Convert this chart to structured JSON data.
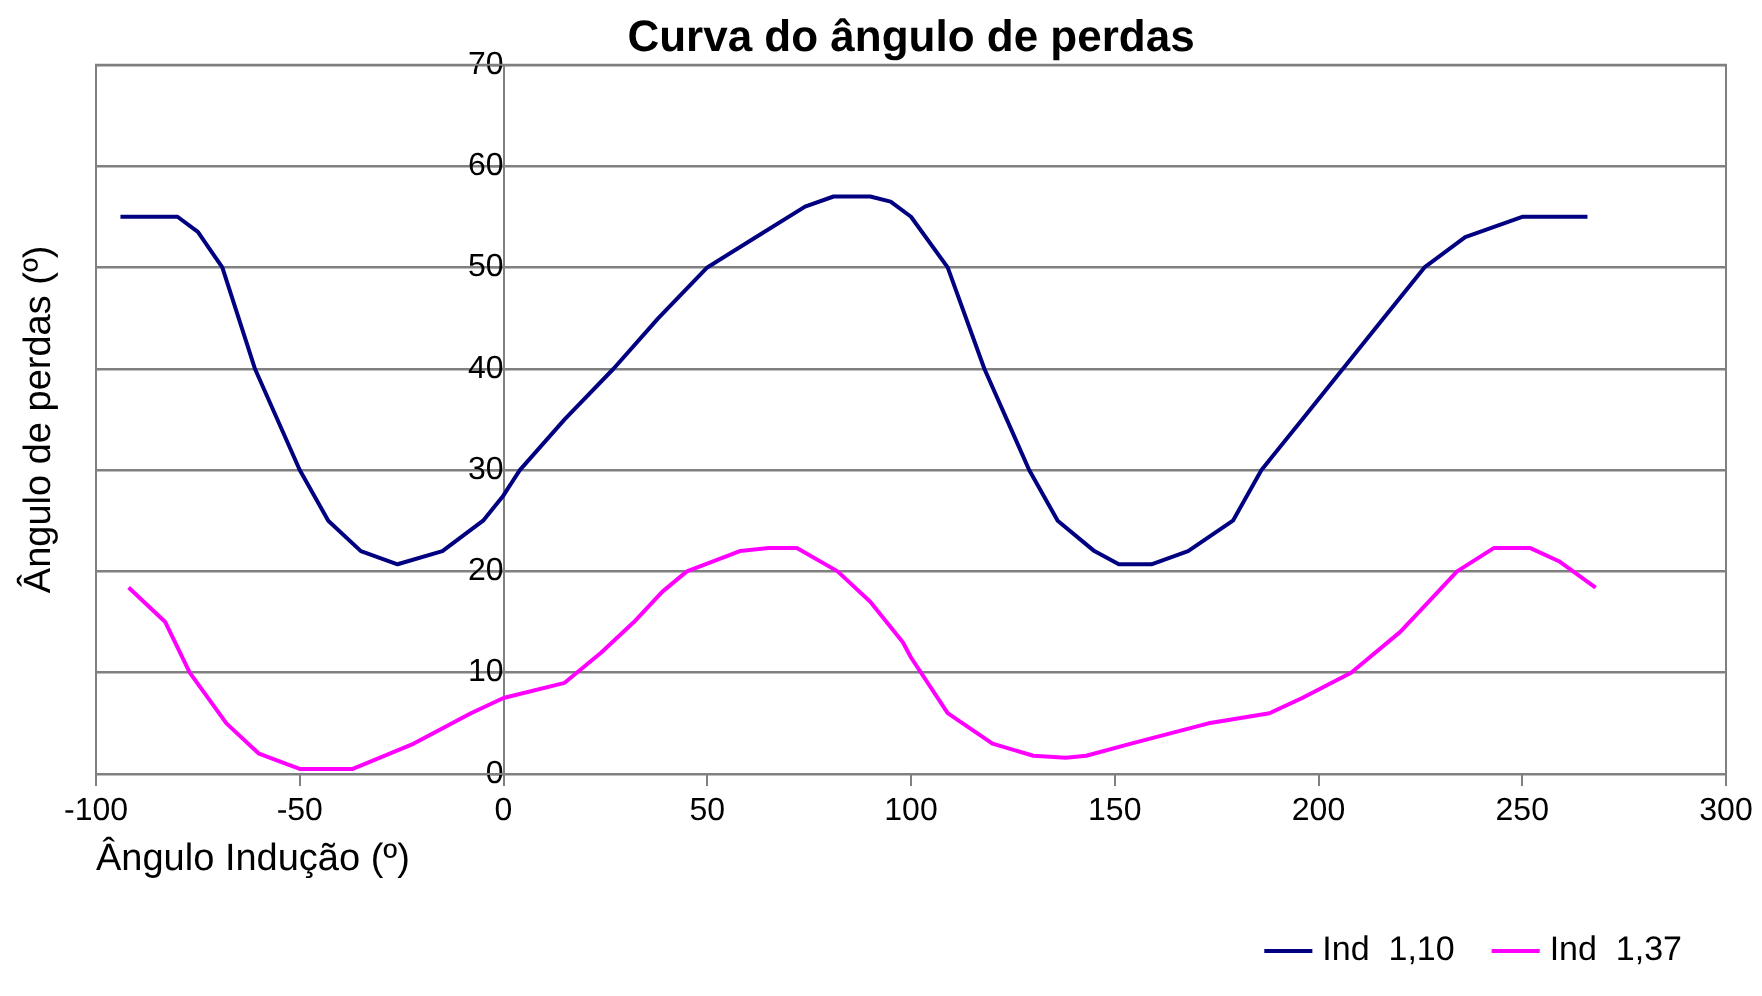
{
  "chart_data": {
    "type": "line",
    "title": "Curva do ângulo de perdas",
    "xlabel": "Ângulo Indução (º)",
    "ylabel": "Ângulo de perdas (º)",
    "xlim": [
      -100,
      300
    ],
    "xticks": [
      -100,
      -50,
      0,
      50,
      100,
      150,
      200,
      250,
      300
    ],
    "ylim": [
      0,
      70
    ],
    "yticks": [
      0,
      10,
      20,
      30,
      40,
      50,
      60,
      70
    ],
    "grid": "y",
    "legend": "bottom",
    "marker": "none",
    "line_style": "solid",
    "series": [
      {
        "name": "Ind  1,10",
        "color": "#000080",
        "x": [
          -94,
          -80,
          -75,
          -69,
          -61,
          -50,
          -43,
          -35,
          -26,
          -15,
          -5,
          0,
          4,
          15,
          27,
          38,
          50,
          62,
          74,
          81,
          90,
          95,
          100,
          109,
          118,
          129,
          136,
          145,
          151,
          159,
          168,
          179,
          186,
          196,
          206,
          216,
          226,
          236,
          250,
          258,
          266
        ],
        "values": [
          55,
          55,
          53.5,
          50,
          40,
          30,
          25,
          22,
          20.7,
          22,
          25,
          27.5,
          30,
          35,
          40,
          45,
          50,
          53,
          56,
          57,
          57,
          56.5,
          55,
          50,
          40,
          30,
          25,
          22,
          20.7,
          20.7,
          22,
          25,
          30,
          35,
          40,
          45,
          50,
          53,
          55,
          55,
          55
        ]
      },
      {
        "name": "Ind  1,37",
        "color": "#ff00ff",
        "x": [
          -92,
          -83,
          -77,
          -68,
          -60,
          -50,
          -37,
          -22,
          -8,
          0,
          15,
          24,
          32,
          39,
          45,
          58,
          65,
          72,
          82,
          90,
          98,
          100,
          109,
          120,
          130,
          138,
          143,
          154,
          173,
          188,
          196,
          208,
          220,
          227,
          234,
          243,
          252,
          259,
          268
        ],
        "values": [
          18.4,
          15,
          10,
          5,
          2,
          0.5,
          0.5,
          3,
          6,
          7.5,
          9,
          12,
          15,
          18,
          20,
          22,
          22.3,
          22.3,
          20,
          17,
          13,
          11.5,
          6,
          3,
          1.8,
          1.6,
          1.8,
          3,
          5,
          6,
          7.5,
          10,
          14,
          17,
          20,
          22.3,
          22.3,
          21,
          18.4
        ]
      }
    ]
  }
}
